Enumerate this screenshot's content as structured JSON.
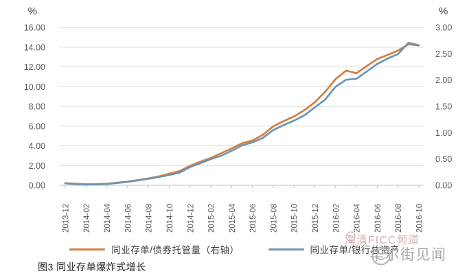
{
  "caption": "图3 同业存单爆炸式增长",
  "legend": {
    "items": [
      {
        "label": "同业存单/债券托管量（右轴）",
        "color": "#D67D3E"
      },
      {
        "label": "同业存单/银行总资产",
        "color": "#6C95B3"
      }
    ]
  },
  "watermarks": {
    "haiqing": {
      "text": "海清FICC频道",
      "color": "#D5B3B0"
    },
    "wallstreetcn": {
      "text": "华尔街见闻",
      "color": "#ABABAB"
    }
  },
  "chart_data": {
    "type": "line",
    "title": "图3 同业存单爆炸式增长",
    "grid": true,
    "legend_position": "bottom",
    "x": [
      "2013-12",
      "2014-01",
      "2014-02",
      "2014-03",
      "2014-04",
      "2014-05",
      "2014-06",
      "2014-07",
      "2014-08",
      "2014-09",
      "2014-10",
      "2014-11",
      "2014-12",
      "2015-01",
      "2015-02",
      "2015-03",
      "2015-04",
      "2015-05",
      "2015-06",
      "2015-07",
      "2015-08",
      "2015-09",
      "2015-10",
      "2015-11",
      "2015-12",
      "2016-01",
      "2016-02",
      "2016-03",
      "2016-04",
      "2016-05",
      "2016-06",
      "2016-07",
      "2016-08",
      "2016-09",
      "2016-10"
    ],
    "x_tick_labels_shown": [
      "2013-12",
      "2014-02",
      "2014-04",
      "2014-06",
      "2014-08",
      "2014-10",
      "2014-12",
      "2015-02",
      "2015-04",
      "2015-06",
      "2015-08",
      "2015-10",
      "2015-12",
      "2016-02",
      "2016-04",
      "2016-06",
      "2016-08",
      "2016-10"
    ],
    "series": [
      {
        "name": "同业存单/债券托管量（右轴）",
        "axis": "right",
        "color": "#D67D3E",
        "values": [
          0.04,
          0.03,
          0.02,
          0.02,
          0.03,
          0.05,
          0.07,
          0.1,
          0.13,
          0.17,
          0.22,
          0.27,
          0.37,
          0.45,
          0.52,
          0.61,
          0.7,
          0.8,
          0.85,
          0.96,
          1.12,
          1.22,
          1.31,
          1.43,
          1.58,
          1.78,
          2.02,
          2.18,
          2.13,
          2.27,
          2.4,
          2.48,
          2.56,
          2.68,
          2.66
        ]
      },
      {
        "name": "同业存单/银行总资产",
        "axis": "left",
        "color": "#6C95B3",
        "values": [
          0.2,
          0.12,
          0.08,
          0.1,
          0.14,
          0.24,
          0.35,
          0.5,
          0.66,
          0.84,
          1.05,
          1.28,
          1.85,
          2.25,
          2.65,
          3.0,
          3.5,
          4.05,
          4.35,
          4.8,
          5.6,
          6.1,
          6.55,
          7.1,
          7.9,
          8.7,
          10.0,
          10.7,
          10.8,
          11.55,
          12.3,
          12.85,
          13.3,
          14.45,
          14.2
        ]
      }
    ],
    "left_axis": {
      "unit": "%",
      "min": 0,
      "max": 16,
      "tick_step": 2,
      "tick_labels": [
        "16.00",
        "14.00",
        "12.00",
        "10.00",
        "8.00",
        "6.00",
        "4.00",
        "2.00",
        "0.00"
      ]
    },
    "right_axis": {
      "unit": "%",
      "min": 0,
      "max": 3,
      "tick_step": 0.5,
      "tick_labels": [
        "3.00",
        "2.50",
        "2.00",
        "1.50",
        "1.00",
        "0.50",
        "0.00"
      ]
    },
    "style": {
      "gridline": "#D9D9D9",
      "axis_line": "#BFBFBF",
      "tick_text": "#595959",
      "unit_text": "#404040"
    }
  }
}
